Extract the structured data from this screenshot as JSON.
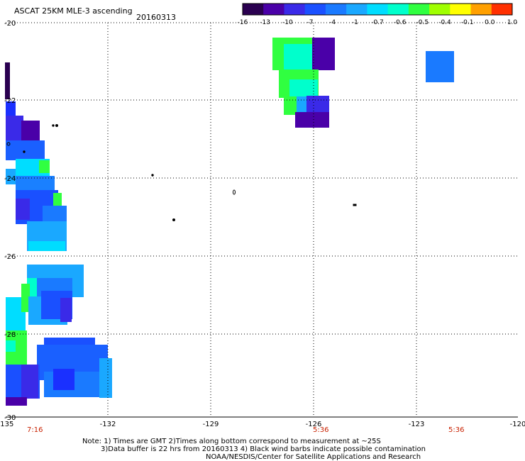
{
  "header": {
    "title": "ASCAT 25KM MLE-3 ascending",
    "date": "20160313"
  },
  "colorbar": {
    "labels": [
      "-16",
      "-13",
      "-10",
      "-7",
      "-4",
      "-1",
      "-0.7",
      "-0.6",
      "-0.5",
      "-0.4",
      "-0.1",
      "0.0",
      "1.0"
    ],
    "colors": [
      "#2a0050",
      "#4a00a8",
      "#3a2ae8",
      "#1a50ff",
      "#1a7aff",
      "#1aa8ff",
      "#00ddff",
      "#00ffcc",
      "#30ff40",
      "#a0ff00",
      "#ffff00",
      "#ffa000",
      "#ff3000"
    ]
  },
  "axes": {
    "x_ticks": [
      "-135",
      "-132",
      "-129",
      "-126",
      "-123",
      "-120"
    ],
    "y_ticks": [
      "-20",
      "-22",
      "-24",
      "-26",
      "-28",
      "-30"
    ]
  },
  "times": {
    "left": "7:16",
    "middle": "5:36",
    "right": "5:36"
  },
  "notes": {
    "line1": "Note: 1) Times are GMT 2)Times along bottom correspond to measurement at ~25S",
    "line2": "3)Data buffer is 22 hrs from 20160313 4) Black wind barbs indicate possible contamination",
    "line3": "NOAA/NESDIS/Center for Satellite Applications and Research"
  }
}
